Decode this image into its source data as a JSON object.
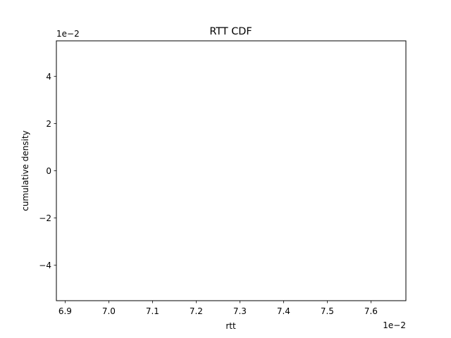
{
  "chart_data": {
    "type": "line",
    "title": "RTT CDF",
    "xlabel": "rtt",
    "ylabel": "cumulative density",
    "x_offset_label": "1e−2",
    "y_offset_label": "1e−2",
    "xlim": [
      0.0688,
      0.0768
    ],
    "ylim": [
      -0.055,
      0.055
    ],
    "x_ticks": [
      0.069,
      0.07,
      0.071,
      0.072,
      0.073,
      0.074,
      0.075,
      0.076
    ],
    "x_tick_labels": [
      "6.9",
      "7.0",
      "7.1",
      "7.2",
      "7.3",
      "7.4",
      "7.5",
      "7.6"
    ],
    "y_ticks": [
      -0.04,
      -0.02,
      0.0,
      0.02,
      0.04
    ],
    "y_tick_labels": [
      "−4",
      "−2",
      "0",
      "2",
      "4"
    ],
    "series": [],
    "grid": false,
    "legend": "none"
  }
}
